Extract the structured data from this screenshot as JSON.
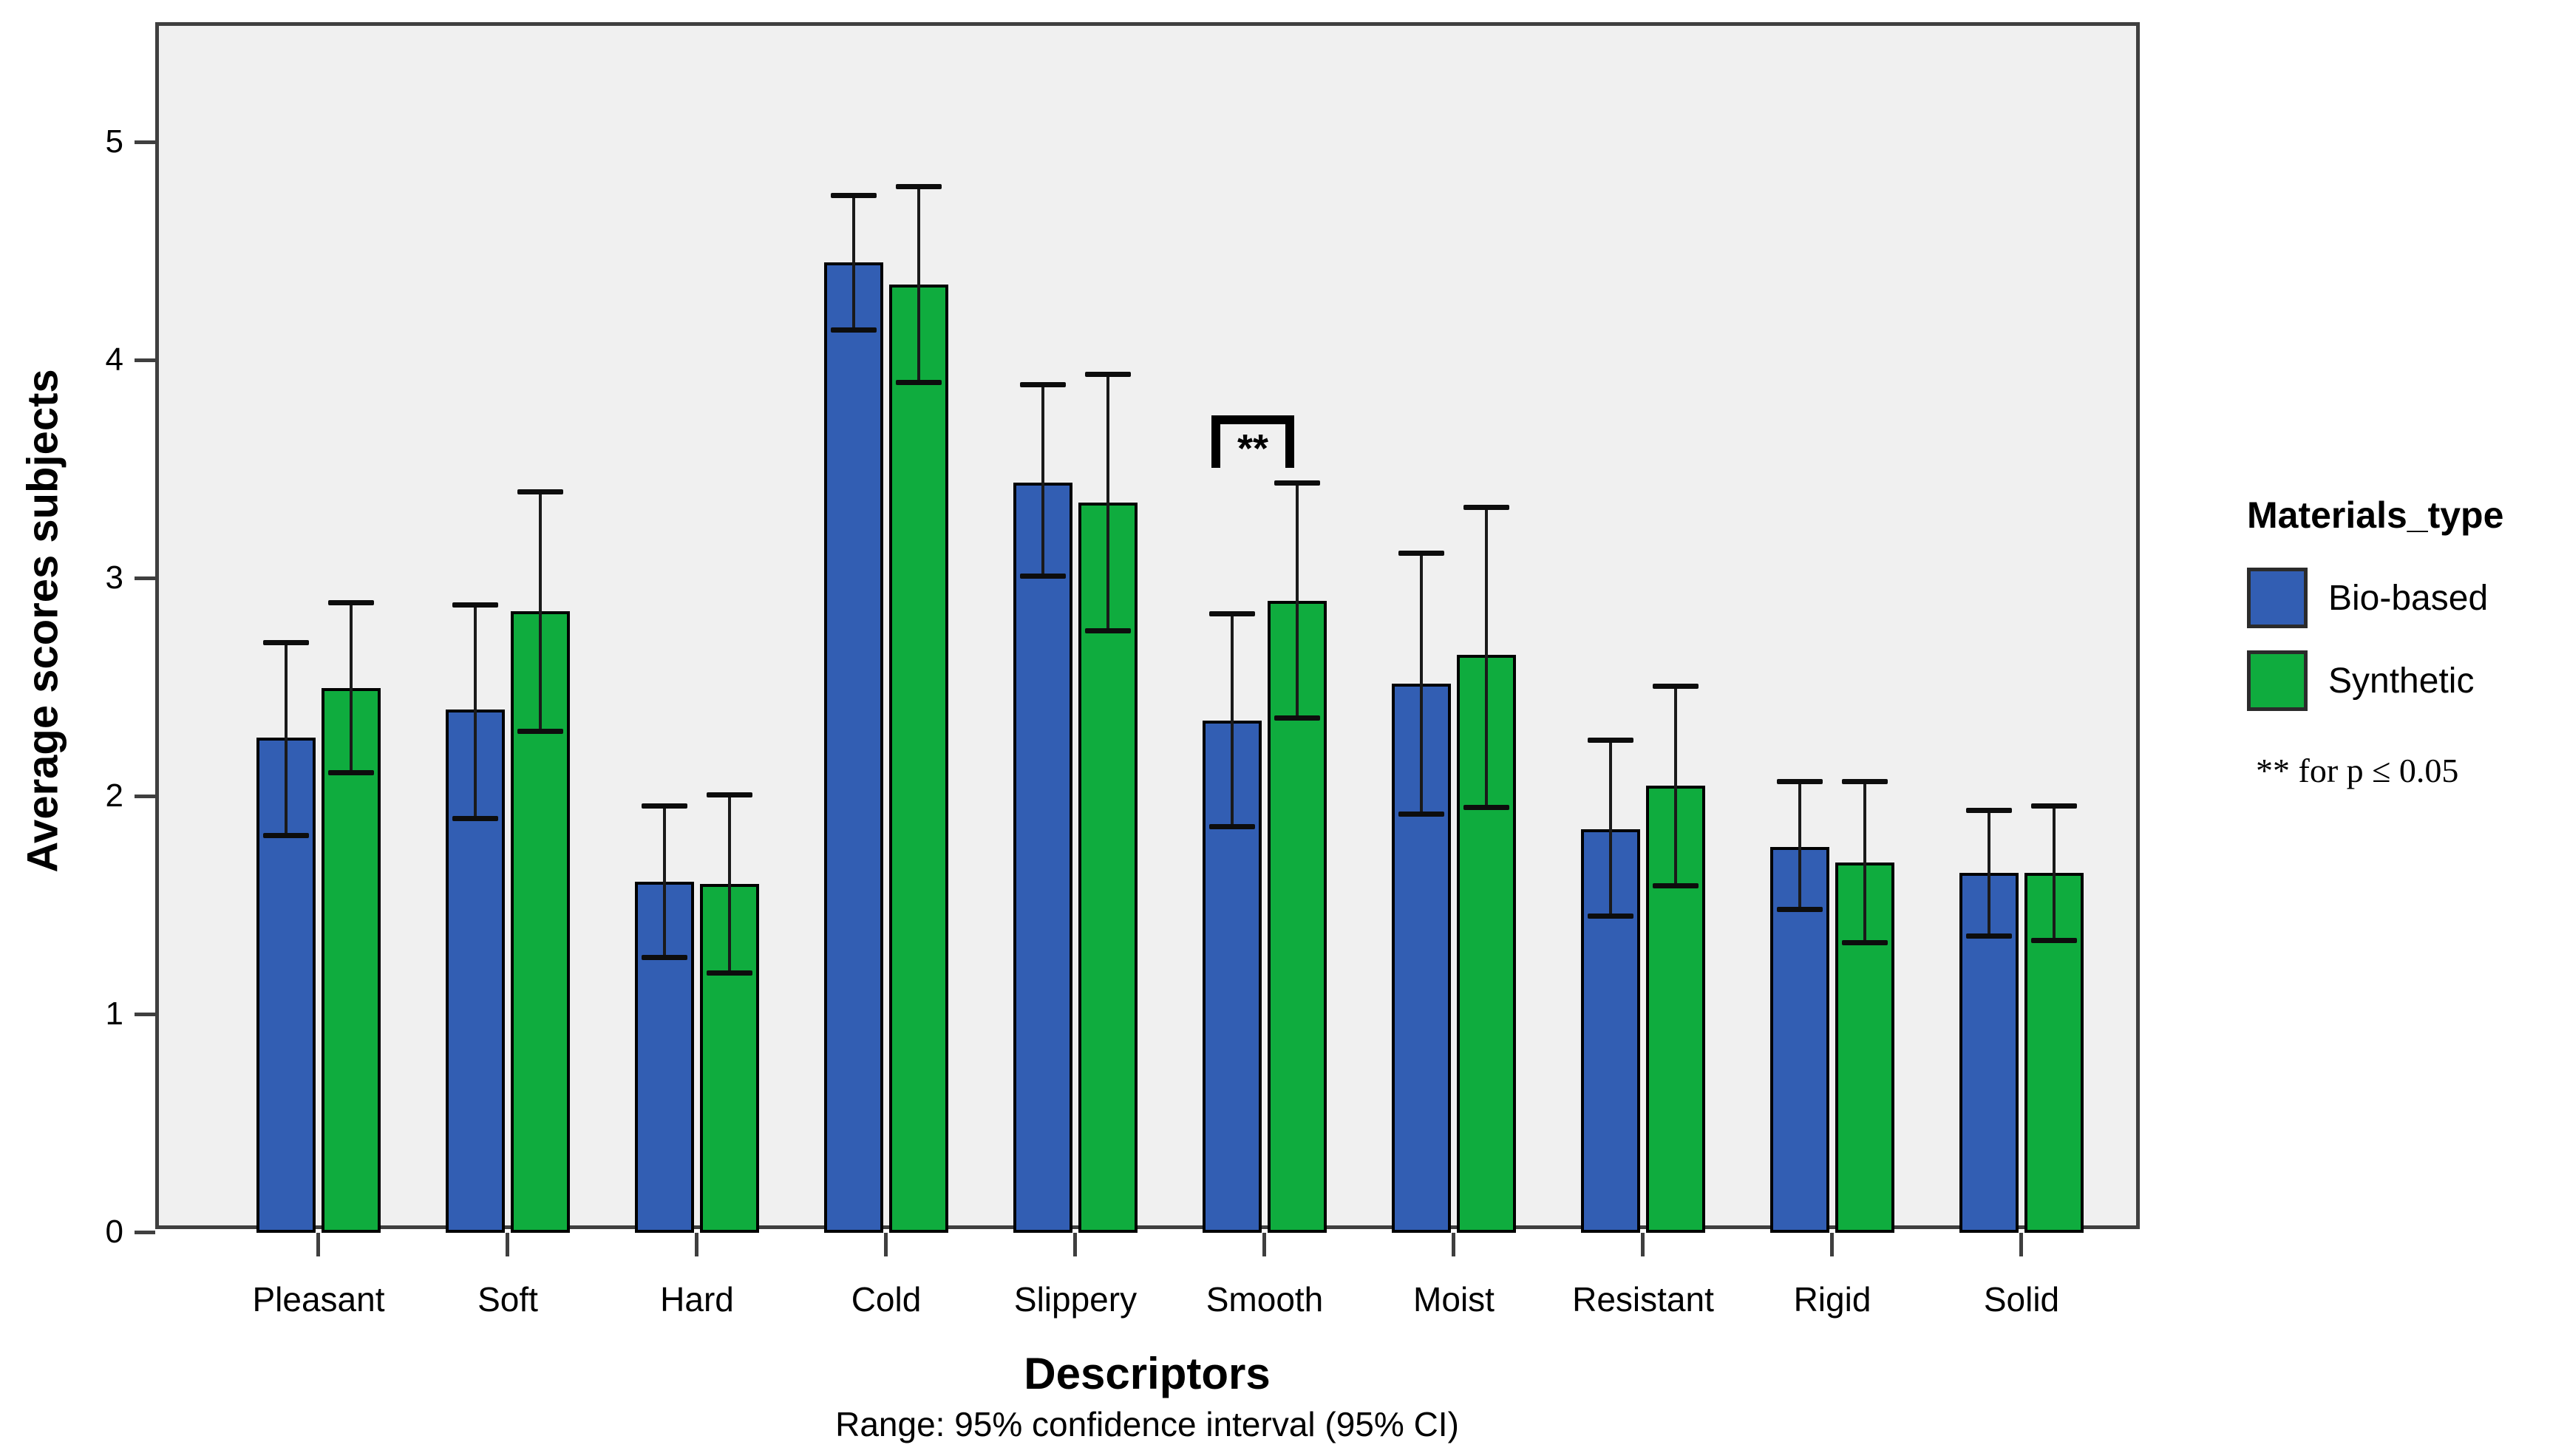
{
  "chart_data": {
    "type": "bar",
    "xlabel": "Descriptors",
    "subtitle": "Range: 95% confidence interval (95% CI)",
    "ylabel": "Average scores subjects",
    "categories": [
      "Pleasant",
      "Soft",
      "Hard",
      "Cold",
      "Slippery",
      "Smooth",
      "Moist",
      "Resistant",
      "Rigid",
      "Solid"
    ],
    "series": [
      {
        "name": "Bio-based",
        "color": "#325EB3",
        "values": [
          2.27,
          2.4,
          1.61,
          4.45,
          3.44,
          2.35,
          2.52,
          1.85,
          1.77,
          1.65
        ],
        "ci_low": [
          1.82,
          1.9,
          1.26,
          4.14,
          3.01,
          1.86,
          1.92,
          1.45,
          1.48,
          1.36
        ],
        "ci_high": [
          2.71,
          2.88,
          1.96,
          4.76,
          3.89,
          2.84,
          3.12,
          2.26,
          2.07,
          1.94
        ]
      },
      {
        "name": "Synthetic",
        "color": "#0FAC3E",
        "values": [
          2.5,
          2.85,
          1.6,
          4.35,
          3.35,
          2.9,
          2.65,
          2.05,
          1.7,
          1.65
        ],
        "ci_low": [
          2.11,
          2.3,
          1.19,
          3.9,
          2.76,
          2.36,
          1.95,
          1.59,
          1.33,
          1.34
        ],
        "ci_high": [
          2.89,
          3.4,
          2.01,
          4.8,
          3.94,
          3.44,
          3.33,
          2.51,
          2.07,
          1.96
        ]
      }
    ],
    "ylim": [
      0,
      5.5
    ],
    "yticks": [
      0,
      1,
      2,
      3,
      4,
      5
    ],
    "grid": false,
    "legend_position": "right",
    "legend_title": "Materials_type",
    "note": "** for p ≤ 0.05",
    "error_bars": "95% CI",
    "significance": {
      "category": "Smooth",
      "label": "**",
      "bracket_top_value": 3.75,
      "bracket_leg_value": 3.51
    },
    "colors": {
      "plot_background": "#f0f0f0",
      "frame": "#3f3f3f",
      "bar_border": "#000000",
      "error_bar": "#1a1a1a"
    }
  }
}
